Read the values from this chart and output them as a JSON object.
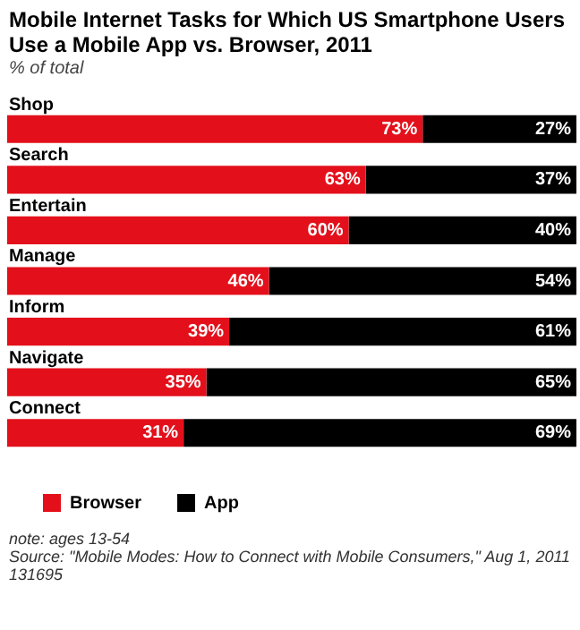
{
  "chart_data": {
    "type": "bar",
    "orientation": "horizontal",
    "stacked": true,
    "title": "Mobile Internet Tasks for Which US Smartphone Users Use a Mobile App vs. Browser, 2011",
    "subtitle": "% of total",
    "categories": [
      "Shop",
      "Search",
      "Entertain",
      "Manage",
      "Inform",
      "Navigate",
      "Connect"
    ],
    "series": [
      {
        "name": "Browser",
        "color": "#e3101b",
        "values": [
          73,
          63,
          60,
          46,
          39,
          35,
          31
        ],
        "value_labels": [
          "73%",
          "63%",
          "60%",
          "46%",
          "39%",
          "35%",
          "31%"
        ]
      },
      {
        "name": "App",
        "color": "#000000",
        "values": [
          27,
          37,
          40,
          54,
          61,
          65,
          69
        ],
        "value_labels": [
          "27%",
          "37%",
          "40%",
          "54%",
          "61%",
          "65%",
          "69%"
        ]
      }
    ],
    "xlim": [
      0,
      100
    ],
    "tick_labels": false,
    "legend": "bottom left",
    "annotations": [
      "note: ages 13-54",
      "Source: \"Mobile Modes: How to Connect with Mobile Consumers,\" Aug 1, 2011",
      "131695"
    ]
  }
}
